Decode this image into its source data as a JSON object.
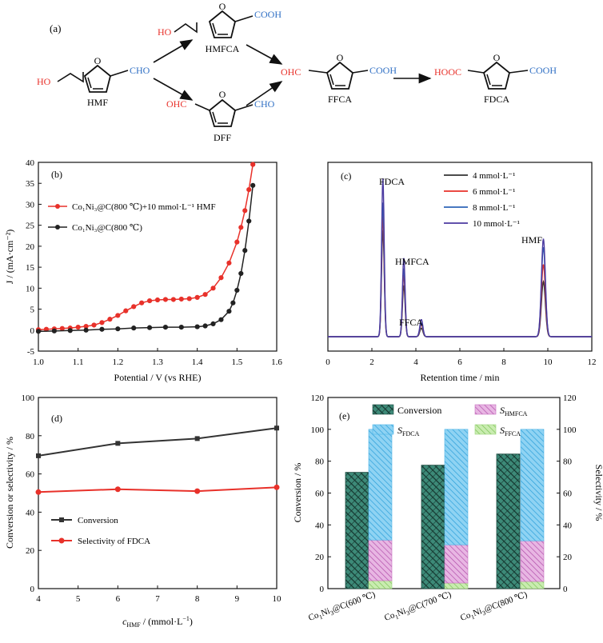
{
  "scheme": {
    "panel_label": "(a)",
    "molecules": {
      "hmf": {
        "name": "HMF",
        "left_group": "HO",
        "right_group": "CHO"
      },
      "hmfca": {
        "name": "HMFCA",
        "left_group": "HO",
        "right_group": "COOH"
      },
      "dff": {
        "name": "DFF",
        "left_group": "OHC",
        "right_group": "CHO"
      },
      "ffca": {
        "name": "FFCA",
        "left_group": "OHC",
        "right_group": "COOH"
      },
      "fdca": {
        "name": "FDCA",
        "left_group": "HOOC",
        "right_group": "COOH"
      }
    },
    "ring_atom": "O",
    "colors": {
      "red_group": "#e8312a",
      "blue_group": "#2f6fc4"
    }
  },
  "chart_data": [
    {
      "panel_label": "(b)",
      "type": "line",
      "xlabel": "Potential / V (vs RHE)",
      "ylabel": "J / (mA·cm⁻²)",
      "xlim": [
        1.0,
        1.6
      ],
      "ylim": [
        -5,
        40
      ],
      "xticks": [
        "1.0",
        "1.1",
        "1.2",
        "1.3",
        "1.4",
        "1.5",
        "1.6"
      ],
      "yticks": [
        "-5",
        "0",
        "5",
        "10",
        "15",
        "20",
        "25",
        "30",
        "35",
        "40"
      ],
      "legend_position": "upper-left",
      "series": [
        {
          "name": "Co1Ni3@C(800 ℃)+10 mmol·L⁻¹ HMF",
          "legend_text": "Co₁Ni₃@C(800 ℃)+10 mmol·L⁻¹ HMF",
          "color": "#e8312a",
          "x": [
            1.0,
            1.02,
            1.04,
            1.06,
            1.08,
            1.1,
            1.12,
            1.14,
            1.16,
            1.18,
            1.2,
            1.22,
            1.24,
            1.26,
            1.28,
            1.3,
            1.32,
            1.34,
            1.36,
            1.38,
            1.4,
            1.42,
            1.44,
            1.46,
            1.48,
            1.5,
            1.51,
            1.52,
            1.53,
            1.54
          ],
          "y": [
            0.1,
            0.2,
            0.3,
            0.4,
            0.5,
            0.7,
            0.9,
            1.2,
            1.8,
            2.6,
            3.5,
            4.6,
            5.6,
            6.5,
            7.0,
            7.2,
            7.3,
            7.3,
            7.4,
            7.5,
            7.8,
            8.5,
            10.0,
            12.5,
            16.0,
            21.0,
            24.5,
            28.5,
            33.5,
            39.5
          ]
        },
        {
          "name": "Co1Ni3@C(800 ℃)",
          "legend_text": "Co₁Ni₃@C(800 ℃)",
          "color": "#222222",
          "x": [
            1.0,
            1.04,
            1.08,
            1.12,
            1.16,
            1.2,
            1.24,
            1.28,
            1.32,
            1.36,
            1.4,
            1.42,
            1.44,
            1.46,
            1.48,
            1.49,
            1.5,
            1.51,
            1.52,
            1.53,
            1.54
          ],
          "y": [
            -0.3,
            -0.2,
            -0.1,
            0.0,
            0.2,
            0.3,
            0.5,
            0.6,
            0.7,
            0.7,
            0.8,
            1.0,
            1.5,
            2.5,
            4.5,
            6.5,
            9.5,
            13.5,
            19.0,
            26.0,
            34.5
          ]
        }
      ]
    },
    {
      "panel_label": "(c)",
      "type": "line",
      "xlabel": "Retention time / min",
      "ylabel": "",
      "xlim": [
        0,
        12
      ],
      "xticks": [
        "0",
        "2",
        "4",
        "6",
        "8",
        "10",
        "12"
      ],
      "legend_position": "upper-right",
      "peak_labels": [
        "FDCA",
        "HMFCA",
        "FFCA",
        "HMF"
      ],
      "peak_centers": [
        2.5,
        3.45,
        4.25,
        9.8
      ],
      "series": [
        {
          "name": "4 mmol·L⁻¹",
          "legend_text": "4 mmol·L⁻¹",
          "color": "#333333",
          "peak_heights": [
            0.62,
            0.3,
            0.05,
            0.32
          ]
        },
        {
          "name": "6 mmol·L⁻¹",
          "legend_text": "6 mmol·L⁻¹",
          "color": "#e8312a",
          "peak_heights": [
            0.7,
            0.36,
            0.07,
            0.42
          ]
        },
        {
          "name": "8 mmol·L⁻¹",
          "legend_text": "8 mmol·L⁻¹",
          "color": "#2e64b7",
          "peak_heights": [
            0.78,
            0.4,
            0.08,
            0.52
          ]
        },
        {
          "name": "10 mmol·L⁻¹",
          "legend_text": "10 mmol·L⁻¹",
          "color": "#4b3aa0",
          "peak_heights": [
            0.92,
            0.46,
            0.1,
            0.57
          ]
        }
      ]
    },
    {
      "panel_label": "(d)",
      "type": "line",
      "xlabel": "c_HMF / (mmol·L⁻¹)",
      "ylabel": "Conversion or selectivity / %",
      "xlim": [
        4,
        10
      ],
      "ylim": [
        0,
        100
      ],
      "xticks": [
        "4",
        "5",
        "6",
        "7",
        "8",
        "9",
        "10"
      ],
      "yticks": [
        "0",
        "20",
        "40",
        "60",
        "80",
        "100"
      ],
      "legend_position": "lower-left",
      "series": [
        {
          "name": "Conversion",
          "legend_text": "Conversion",
          "color": "#333333",
          "marker": "square",
          "x": [
            4,
            6,
            8,
            10
          ],
          "y": [
            69.5,
            76.0,
            78.5,
            84.0
          ]
        },
        {
          "name": "Selectivity of FDCA",
          "legend_text": "Selectivity of FDCA",
          "color": "#e8312a",
          "marker": "circle",
          "x": [
            4,
            6,
            8,
            10
          ],
          "y": [
            50.5,
            52.0,
            51.0,
            53.0
          ]
        }
      ]
    },
    {
      "panel_label": "(e)",
      "type": "bar",
      "ylabel": "Conversion / %",
      "y2label": "Selectivity / %",
      "ylim": [
        0,
        120
      ],
      "yticks": [
        "0",
        "20",
        "40",
        "60",
        "80",
        "100",
        "120"
      ],
      "categories": [
        "Co1Ni3@C(600 ℃)",
        "Co1Ni3@C(700 ℃)",
        "Co1Ni3@C(800 ℃)"
      ],
      "category_texts": [
        {
          "main": "Co",
          "sub1": "1",
          "mid": "Ni",
          "sub2": "3",
          "tail": "@C(600 ℃)"
        },
        {
          "main": "Co",
          "sub1": "1",
          "mid": "Ni",
          "sub2": "3",
          "tail": "@C(700 ℃)"
        },
        {
          "main": "Co",
          "sub1": "1",
          "mid": "Ni",
          "sub2": "3",
          "tail": "@C(800 ℃)"
        }
      ],
      "legend_position": "top",
      "conversion": {
        "name": "Conversion",
        "values": [
          73.0,
          77.5,
          84.5
        ],
        "color": "#2f6b5e"
      },
      "selectivity": [
        {
          "name": "S_FFCA",
          "base": "S",
          "sub": "FFCA",
          "values": [
            5.0,
            3.5,
            4.5
          ],
          "color": "#9bd47a"
        },
        {
          "name": "S_HMFCA",
          "base": "S",
          "sub": "HMFCA",
          "values": [
            25.5,
            24.0,
            25.5
          ],
          "color": "#c86fc0"
        },
        {
          "name": "S_FDCA",
          "base": "S",
          "sub": "FDCA",
          "values": [
            69.5,
            72.5,
            70.0
          ],
          "color": "#4db4e6"
        }
      ]
    }
  ]
}
